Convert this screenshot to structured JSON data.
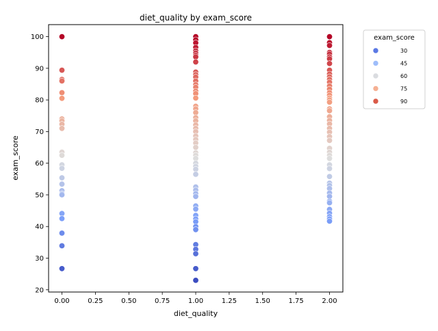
{
  "chart_data": {
    "type": "scatter",
    "title": "diet_quality by exam_score",
    "xlabel": "diet_quality",
    "ylabel": "exam_score",
    "xlim": [
      -0.1,
      2.1
    ],
    "ylim": [
      19.3,
      103.8
    ],
    "x_ticks": [
      "0.00",
      "0.25",
      "0.50",
      "0.75",
      "1.00",
      "1.25",
      "1.50",
      "1.75",
      "2.00"
    ],
    "x_tick_values": [
      0,
      0.25,
      0.5,
      0.75,
      1.0,
      1.25,
      1.5,
      1.75,
      2.0
    ],
    "y_ticks": [
      "20",
      "30",
      "40",
      "50",
      "60",
      "70",
      "80",
      "90",
      "100"
    ],
    "y_tick_values": [
      20,
      30,
      40,
      50,
      60,
      70,
      80,
      90,
      100
    ],
    "hue": "exam_score",
    "color_range": [
      23,
      100
    ],
    "legend": {
      "title": "exam_score",
      "position": "outside-right-top",
      "entries": [
        {
          "label": "30",
          "value": 30,
          "color": "#5a78e4"
        },
        {
          "label": "45",
          "value": 45,
          "color": "#9ebdfa"
        },
        {
          "label": "60",
          "value": 60,
          "color": "#dadce0"
        },
        {
          "label": "75",
          "value": 75,
          "color": "#f5b093"
        },
        {
          "label": "90",
          "value": 90,
          "color": "#da5a48"
        }
      ]
    },
    "grid": false,
    "series": [
      {
        "x": 0,
        "values": [
          100,
          89.4,
          86.5,
          86.0,
          82.3,
          80.5,
          74.0,
          73.4,
          72.3,
          71.0,
          63.5,
          62.5,
          59.5,
          58.4,
          55.4,
          53.4,
          51.3,
          50.4,
          50.0,
          44.1,
          42.5,
          37.9,
          33.9,
          26.7
        ]
      },
      {
        "x": 1,
        "values": [
          100,
          99.0,
          98.0,
          96.6,
          95.5,
          94.8,
          94.1,
          93.6,
          92.0,
          88.8,
          88.0,
          87.2,
          86.0,
          84.8,
          84.0,
          82.8,
          82.0,
          80.6,
          78.0,
          77.2,
          76.0,
          74.4,
          73.4,
          72.1,
          71.0,
          70.0,
          68.6,
          67.5,
          66.4,
          65.0,
          63.3,
          62.5,
          61.5,
          60.0,
          59.0,
          58.1,
          56.5,
          52.5,
          51.5,
          50.4,
          49.5,
          46.5,
          45.5,
          43.5,
          42.4,
          41.5,
          40.0,
          39.0,
          34.3,
          32.8,
          31.4,
          26.7,
          23.0
        ]
      },
      {
        "x": 2,
        "values": [
          100,
          98.1,
          97.2,
          95.0,
          94.5,
          93.6,
          93.0,
          91.5,
          89.4,
          88.2,
          87.3,
          86.5,
          85.6,
          84.4,
          83.4,
          82.3,
          81.5,
          80.6,
          80.0,
          79.3,
          77.2,
          76.6,
          74.7,
          73.5,
          72.4,
          71.0,
          69.8,
          68.4,
          67.2,
          64.7,
          63.5,
          62.5,
          61.5,
          59.5,
          58.3,
          55.8,
          53.7,
          53.0,
          52.0,
          50.6,
          49.5,
          48.0,
          47.5,
          45.4,
          44.2,
          43.1,
          42.4,
          41.7
        ]
      }
    ]
  }
}
